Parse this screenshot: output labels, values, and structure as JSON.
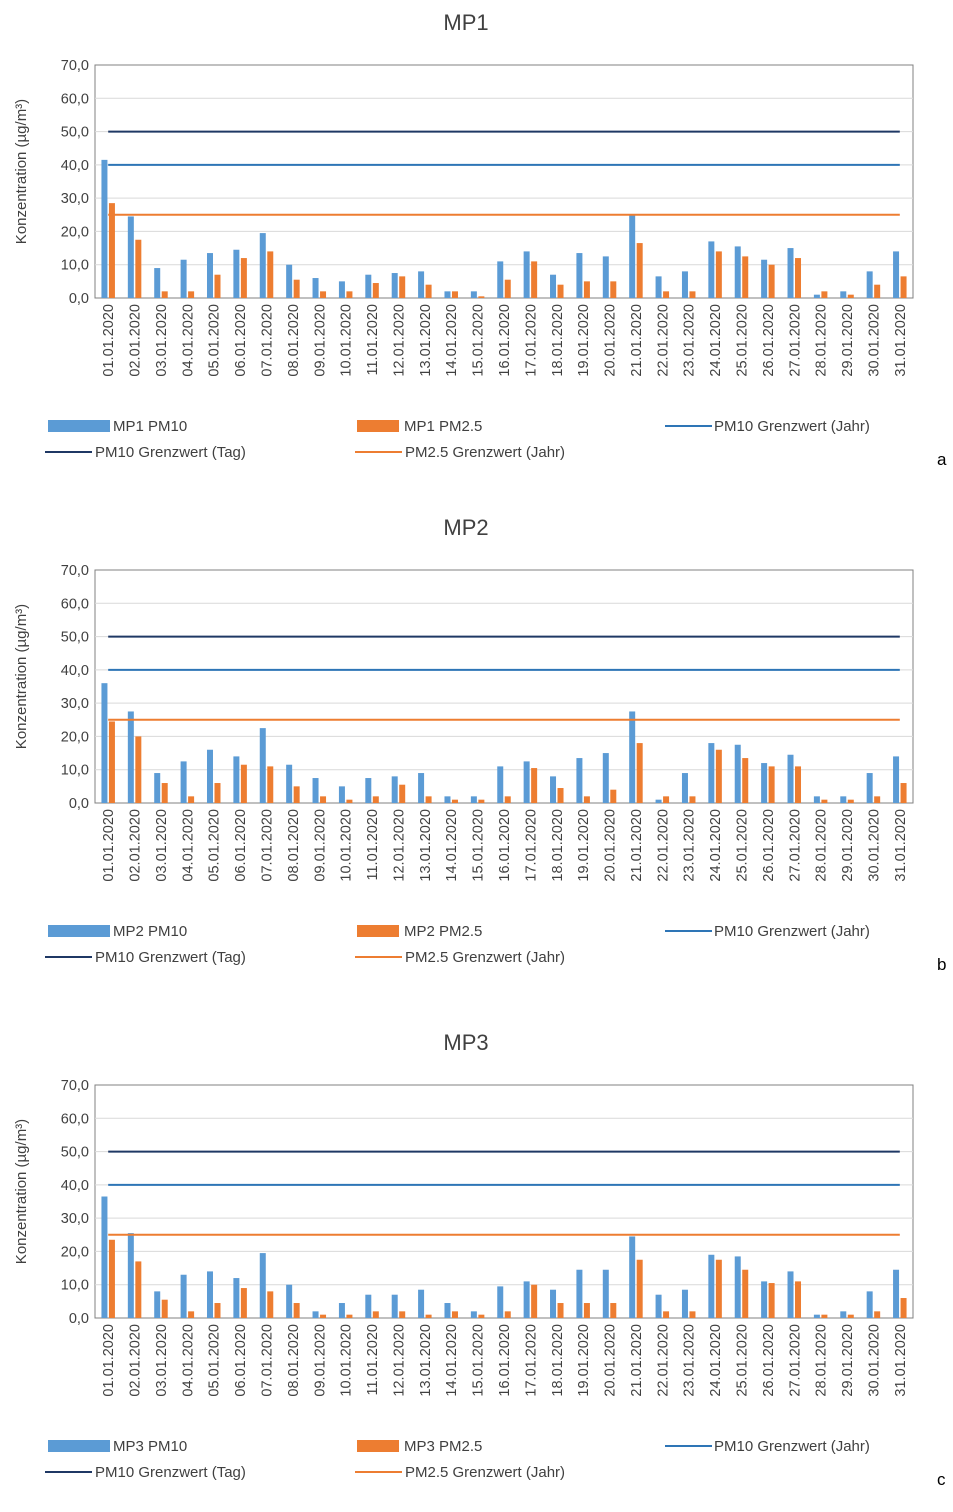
{
  "colors": {
    "pm10_bar": "#5b9bd5",
    "pm25_bar": "#ed7d31",
    "pm10_annual_line": "#2e75b6",
    "pm10_daily_line": "#1f3864",
    "pm25_annual_line": "#ed7d31",
    "axis_text": "#404040"
  },
  "shared": {
    "ylabel": "Konzentration (µg/m³)",
    "yticks": [
      "0,0",
      "10,0",
      "20,0",
      "30,0",
      "40,0",
      "50,0",
      "60,0",
      "70,0"
    ],
    "legend_pm10_annual": "PM10 Grenzwert (Jahr)",
    "legend_pm10_daily": "PM10 Grenzwert (Tag)",
    "legend_pm25_annual": "PM2.5 Grenzwert (Jahr)"
  },
  "chart_data": [
    {
      "type": "bar",
      "panel": "a",
      "title": "MP1",
      "xlabel": "",
      "ylabel": "Konzentration (µg/m³)",
      "ylim": [
        0,
        70
      ],
      "grid": true,
      "legend_position": "bottom",
      "categories": [
        "01.01.2020",
        "02.01.2020",
        "03.01.2020",
        "04.01.2020",
        "05.01.2020",
        "06.01.2020",
        "07.01.2020",
        "08.01.2020",
        "09.01.2020",
        "10.01.2020",
        "11.01.2020",
        "12.01.2020",
        "13.01.2020",
        "14.01.2020",
        "15.01.2020",
        "16.01.2020",
        "17.01.2020",
        "18.01.2020",
        "19.01.2020",
        "20.01.2020",
        "21.01.2020",
        "22.01.2020",
        "23.01.2020",
        "24.01.2020",
        "25.01.2020",
        "26.01.2020",
        "27.01.2020",
        "28.01.2020",
        "29.01.2020",
        "30.01.2020",
        "31.01.2020"
      ],
      "series": [
        {
          "name": "MP1 PM10",
          "values": [
            41.5,
            24.5,
            9.0,
            11.5,
            13.5,
            14.5,
            19.5,
            10.0,
            6.0,
            5.0,
            7.0,
            7.5,
            8.0,
            2.0,
            2.0,
            11.0,
            14.0,
            7.0,
            13.5,
            12.5,
            25.0,
            6.5,
            8.0,
            17.0,
            15.5,
            11.5,
            15.0,
            1.0,
            2.0,
            8.0,
            14.0
          ]
        },
        {
          "name": "MP1 PM2.5",
          "values": [
            28.5,
            17.5,
            2.0,
            2.0,
            7.0,
            12.0,
            14.0,
            5.5,
            2.0,
            2.0,
            4.5,
            6.5,
            4.0,
            2.0,
            0.5,
            5.5,
            11.0,
            4.0,
            5.0,
            5.0,
            16.5,
            2.0,
            2.0,
            14.0,
            12.5,
            10.0,
            12.0,
            2.0,
            1.0,
            4.0,
            6.5
          ]
        }
      ],
      "reference_lines": [
        {
          "name": "PM10 Grenzwert (Jahr)",
          "value": 40
        },
        {
          "name": "PM10 Grenzwert (Tag)",
          "value": 50
        },
        {
          "name": "PM2.5 Grenzwert (Jahr)",
          "value": 25
        }
      ]
    },
    {
      "type": "bar",
      "panel": "b",
      "title": "MP2",
      "xlabel": "",
      "ylabel": "Konzentration (µg/m³)",
      "ylim": [
        0,
        70
      ],
      "grid": true,
      "legend_position": "bottom",
      "categories": [
        "01.01.2020",
        "02.01.2020",
        "03.01.2020",
        "04.01.2020",
        "05.01.2020",
        "06.01.2020",
        "07.01.2020",
        "08.01.2020",
        "09.01.2020",
        "10.01.2020",
        "11.01.2020",
        "12.01.2020",
        "13.01.2020",
        "14.01.2020",
        "15.01.2020",
        "16.01.2020",
        "17.01.2020",
        "18.01.2020",
        "19.01.2020",
        "20.01.2020",
        "21.01.2020",
        "22.01.2020",
        "23.01.2020",
        "24.01.2020",
        "25.01.2020",
        "26.01.2020",
        "27.01.2020",
        "28.01.2020",
        "29.01.2020",
        "30.01.2020",
        "31.01.2020"
      ],
      "series": [
        {
          "name": "MP2 PM10",
          "values": [
            36.0,
            27.5,
            9.0,
            12.5,
            16.0,
            14.0,
            22.5,
            11.5,
            7.5,
            5.0,
            7.5,
            8.0,
            9.0,
            2.0,
            2.0,
            11.0,
            12.5,
            8.0,
            13.5,
            15.0,
            27.5,
            1.0,
            9.0,
            18.0,
            17.5,
            12.0,
            14.5,
            2.0,
            2.0,
            9.0,
            14.0
          ]
        },
        {
          "name": "MP2 PM2.5",
          "values": [
            24.5,
            20.0,
            6.0,
            2.0,
            6.0,
            11.5,
            11.0,
            5.0,
            2.0,
            1.0,
            2.0,
            5.5,
            2.0,
            1.0,
            1.0,
            2.0,
            10.5,
            4.5,
            2.0,
            4.0,
            18.0,
            2.0,
            2.0,
            16.0,
            13.5,
            11.0,
            11.0,
            1.0,
            1.0,
            2.0,
            6.0
          ]
        }
      ],
      "reference_lines": [
        {
          "name": "PM10 Grenzwert (Jahr)",
          "value": 40
        },
        {
          "name": "PM10 Grenzwert (Tag)",
          "value": 50
        },
        {
          "name": "PM2.5 Grenzwert (Jahr)",
          "value": 25
        }
      ]
    },
    {
      "type": "bar",
      "panel": "c",
      "title": "MP3",
      "xlabel": "",
      "ylabel": "Konzentration (µg/m³)",
      "ylim": [
        0,
        70
      ],
      "grid": true,
      "legend_position": "bottom",
      "categories": [
        "01.01.2020",
        "02.01.2020",
        "03.01.2020",
        "04.01.2020",
        "05.01.2020",
        "06.01.2020",
        "07.01.2020",
        "08.01.2020",
        "09.01.2020",
        "10.01.2020",
        "11.01.2020",
        "12.01.2020",
        "13.01.2020",
        "14.01.2020",
        "15.01.2020",
        "16.01.2020",
        "17.01.2020",
        "18.01.2020",
        "19.01.2020",
        "20.01.2020",
        "21.01.2020",
        "22.01.2020",
        "23.01.2020",
        "24.01.2020",
        "25.01.2020",
        "26.01.2020",
        "27.01.2020",
        "28.01.2020",
        "29.01.2020",
        "30.01.2020",
        "31.01.2020"
      ],
      "series": [
        {
          "name": "MP3 PM10",
          "values": [
            36.5,
            25.5,
            8.0,
            13.0,
            14.0,
            12.0,
            19.5,
            10.0,
            2.0,
            4.5,
            7.0,
            7.0,
            8.5,
            4.5,
            2.0,
            9.5,
            11.0,
            8.5,
            14.5,
            14.5,
            24.5,
            7.0,
            8.5,
            19.0,
            18.5,
            11.0,
            14.0,
            1.0,
            2.0,
            8.0,
            14.5
          ]
        },
        {
          "name": "MP3 PM2.5",
          "values": [
            23.5,
            17.0,
            5.5,
            2.0,
            4.5,
            9.0,
            8.0,
            4.5,
            1.0,
            1.0,
            2.0,
            2.0,
            1.0,
            2.0,
            1.0,
            2.0,
            10.0,
            4.5,
            4.5,
            4.5,
            17.5,
            2.0,
            2.0,
            17.5,
            14.5,
            10.5,
            11.0,
            1.0,
            1.0,
            2.0,
            6.0
          ]
        }
      ],
      "reference_lines": [
        {
          "name": "PM10 Grenzwert (Jahr)",
          "value": 40
        },
        {
          "name": "PM10 Grenzwert (Tag)",
          "value": 50
        },
        {
          "name": "PM2.5 Grenzwert (Jahr)",
          "value": 25
        }
      ]
    }
  ]
}
